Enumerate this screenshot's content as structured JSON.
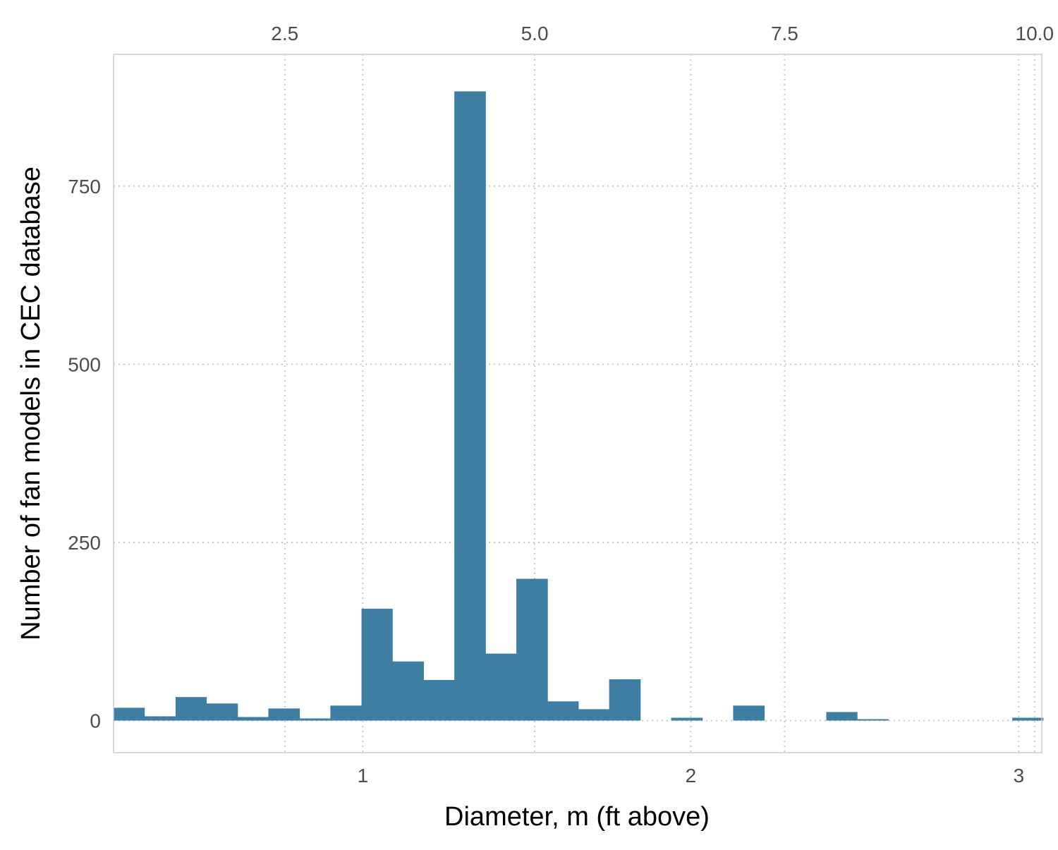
{
  "chart_data": {
    "type": "bar",
    "subtype": "histogram",
    "xlabel": "Diameter, m (ft above)",
    "ylabel": "Number of fan models in CEC database",
    "x_axis_bottom": {
      "unit": "m",
      "range": [
        0.24,
        3.07
      ],
      "ticks": [
        1,
        2,
        3
      ],
      "tick_labels": [
        "1",
        "2",
        "3"
      ]
    },
    "x_axis_top": {
      "unit": "ft",
      "ticks": [
        2.5,
        5.0,
        7.5,
        10.0
      ],
      "tick_labels": [
        "2.5",
        "5.0",
        "7.5",
        "10.0"
      ]
    },
    "y_axis": {
      "range": [
        -45,
        935
      ],
      "ticks": [
        0,
        250,
        500,
        750
      ],
      "tick_labels": [
        "0",
        "250",
        "500",
        "750"
      ]
    },
    "bin_width": 0.0944,
    "bins": [
      {
        "x0": 0.24,
        "x1": 0.334,
        "count": 18
      },
      {
        "x0": 0.334,
        "x1": 0.429,
        "count": 6
      },
      {
        "x0": 0.429,
        "x1": 0.523,
        "count": 33
      },
      {
        "x0": 0.523,
        "x1": 0.618,
        "count": 24
      },
      {
        "x0": 0.618,
        "x1": 0.712,
        "count": 5
      },
      {
        "x0": 0.712,
        "x1": 0.807,
        "count": 17
      },
      {
        "x0": 0.807,
        "x1": 0.901,
        "count": 3
      },
      {
        "x0": 0.901,
        "x1": 0.996,
        "count": 21
      },
      {
        "x0": 0.996,
        "x1": 1.09,
        "count": 157
      },
      {
        "x0": 1.09,
        "x1": 1.185,
        "count": 83
      },
      {
        "x0": 1.185,
        "x1": 1.279,
        "count": 57
      },
      {
        "x0": 1.279,
        "x1": 1.374,
        "count": 883
      },
      {
        "x0": 1.374,
        "x1": 1.468,
        "count": 94
      },
      {
        "x0": 1.468,
        "x1": 1.563,
        "count": 199
      },
      {
        "x0": 1.563,
        "x1": 1.657,
        "count": 27
      },
      {
        "x0": 1.657,
        "x1": 1.751,
        "count": 16
      },
      {
        "x0": 1.751,
        "x1": 1.846,
        "count": 58
      },
      {
        "x0": 1.846,
        "x1": 1.94,
        "count": 0
      },
      {
        "x0": 1.94,
        "x1": 2.035,
        "count": 4
      },
      {
        "x0": 2.035,
        "x1": 2.129,
        "count": 0
      },
      {
        "x0": 2.129,
        "x1": 2.224,
        "count": 21
      },
      {
        "x0": 2.224,
        "x1": 2.318,
        "count": 0
      },
      {
        "x0": 2.318,
        "x1": 2.413,
        "count": 0
      },
      {
        "x0": 2.413,
        "x1": 2.507,
        "count": 12
      },
      {
        "x0": 2.507,
        "x1": 2.602,
        "count": 2
      },
      {
        "x0": 2.602,
        "x1": 2.696,
        "count": 0
      },
      {
        "x0": 2.696,
        "x1": 2.791,
        "count": 0
      },
      {
        "x0": 2.791,
        "x1": 2.885,
        "count": 0
      },
      {
        "x0": 2.885,
        "x1": 2.98,
        "count": 0
      },
      {
        "x0": 2.98,
        "x1": 3.074,
        "count": 4
      }
    ],
    "grid": true,
    "grid_style": "dotted",
    "colors": {
      "bar": "#3e7ea2",
      "grid": "#c8c8c8",
      "panel_border": "#cccccc",
      "tick_label": "#4d4d4d",
      "axis_title": "#000000"
    }
  }
}
